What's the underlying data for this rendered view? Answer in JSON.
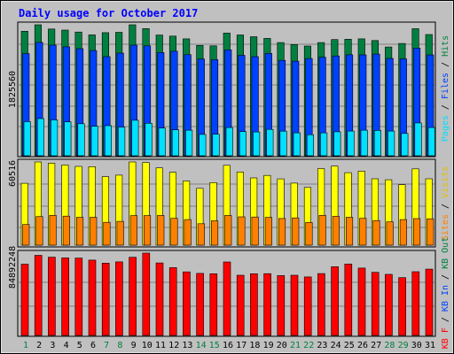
{
  "chart_data": [
    {
      "type": "bar",
      "title": "Daily usage for October 2017",
      "panel": "top",
      "categories": [
        "1",
        "2",
        "3",
        "4",
        "5",
        "6",
        "7",
        "8",
        "9",
        "10",
        "11",
        "12",
        "13",
        "14",
        "15",
        "16",
        "17",
        "18",
        "19",
        "20",
        "21",
        "22",
        "23",
        "24",
        "25",
        "26",
        "27",
        "28",
        "29",
        "30",
        "31"
      ],
      "ymax_label": "1825560",
      "legend": [
        "Pages",
        "Files",
        "Hits"
      ],
      "series": [
        {
          "name": "Hits",
          "color": "#008040",
          "values": [
            1735000,
            1825560,
            1766000,
            1752000,
            1725000,
            1685000,
            1716000,
            1721000,
            1825560,
            1773000,
            1682000,
            1668000,
            1630000,
            1538000,
            1532000,
            1710000,
            1684000,
            1659000,
            1635000,
            1578000,
            1550000,
            1529000,
            1578000,
            1620000,
            1625000,
            1630000,
            1606000,
            1516000,
            1565000,
            1771000,
            1690000
          ]
        },
        {
          "name": "Files",
          "color": "#0040FF",
          "values": [
            1424000,
            1580000,
            1542000,
            1519000,
            1492000,
            1466000,
            1381000,
            1431000,
            1542000,
            1532000,
            1438000,
            1457000,
            1409000,
            1348000,
            1340000,
            1475000,
            1400000,
            1382000,
            1427000,
            1330000,
            1319000,
            1356000,
            1373000,
            1391000,
            1408000,
            1406000,
            1417000,
            1357000,
            1351000,
            1500000,
            1406000
          ]
        },
        {
          "name": "Pages",
          "color": "#00E0FF",
          "values": [
            475000,
            518000,
            499000,
            472000,
            446000,
            411000,
            420000,
            400000,
            495000,
            453000,
            386000,
            361000,
            356000,
            297000,
            301000,
            393000,
            337000,
            332000,
            368000,
            343000,
            320000,
            294000,
            320000,
            334000,
            344000,
            356000,
            353000,
            344000,
            311000,
            458000,
            393000
          ]
        }
      ]
    },
    {
      "type": "bar",
      "panel": "middle",
      "categories": [
        "1",
        "2",
        "3",
        "4",
        "5",
        "6",
        "7",
        "8",
        "9",
        "10",
        "11",
        "12",
        "13",
        "14",
        "15",
        "16",
        "17",
        "18",
        "19",
        "20",
        "21",
        "22",
        "23",
        "24",
        "25",
        "26",
        "27",
        "28",
        "29",
        "30",
        "31"
      ],
      "ymax_label": "60516",
      "legend": [
        "Sites",
        "Visits"
      ],
      "series": [
        {
          "name": "Visits",
          "color": "#FFFF00",
          "values": [
            45000,
            60516,
            59600,
            58300,
            57300,
            57100,
            49800,
            50900,
            60516,
            60100,
            56200,
            53000,
            46700,
            41300,
            45500,
            58100,
            53200,
            48900,
            50700,
            48200,
            45100,
            42000,
            55700,
            57500,
            52700,
            53800,
            48300,
            47600,
            44000,
            55500,
            48300
          ]
        },
        {
          "name": "Sites",
          "color": "#FF8000",
          "values": [
            15000,
            20800,
            21700,
            21100,
            20200,
            20300,
            16600,
            17300,
            21500,
            21500,
            21600,
            19500,
            18600,
            15600,
            17700,
            21600,
            20600,
            20500,
            20200,
            19400,
            19800,
            16500,
            21700,
            21000,
            20300,
            19500,
            17900,
            16900,
            18600,
            19300,
            19200
          ]
        }
      ]
    },
    {
      "type": "bar",
      "panel": "bottom",
      "categories": [
        "1",
        "2",
        "3",
        "4",
        "5",
        "6",
        "7",
        "8",
        "9",
        "10",
        "11",
        "12",
        "13",
        "14",
        "15",
        "16",
        "17",
        "18",
        "19",
        "20",
        "21",
        "22",
        "23",
        "24",
        "25",
        "26",
        "27",
        "28",
        "29",
        "30",
        "31"
      ],
      "ymax_label": "84892248",
      "legend": [
        "KB F",
        "KB In",
        "KB Out"
      ],
      "series": [
        {
          "name": "KB F",
          "color": "#FF0000",
          "values": [
            73500000,
            82600000,
            80700000,
            80000000,
            79800000,
            77700000,
            74600000,
            75900000,
            80600000,
            84892248,
            74800000,
            69900000,
            65500000,
            64000000,
            63600000,
            75800000,
            62100000,
            63600000,
            63700000,
            61700000,
            62100000,
            60300000,
            63800000,
            70800000,
            73700000,
            69500000,
            65100000,
            63000000,
            59600000,
            65700000,
            68400000
          ]
        }
      ]
    }
  ]
}
